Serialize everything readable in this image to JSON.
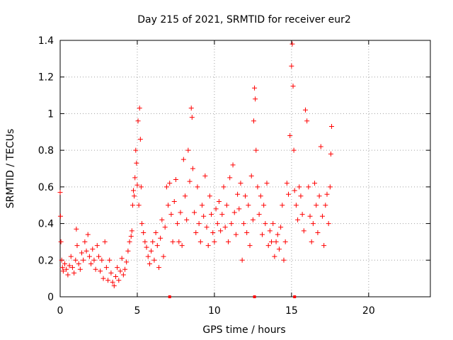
{
  "chart_data": {
    "type": "scatter",
    "title": "Day 215 of 2021, SRMTID for receiver eur2",
    "xlabel": "GPS time / hours",
    "ylabel": "SRMTID / TECUs",
    "xlim": [
      0,
      24
    ],
    "ylim": [
      0,
      1.4
    ],
    "xticks": [
      0,
      5,
      10,
      15,
      20
    ],
    "xtick_labels": [
      "0",
      "5",
      "10",
      "15",
      "20"
    ],
    "yticks": [
      0,
      0.2,
      0.4,
      0.6,
      0.8,
      1.0,
      1.2,
      1.4
    ],
    "ytick_labels": [
      "0",
      "0.2",
      "0.4",
      "0.6",
      "0.8",
      "1",
      "1.2",
      "1.4"
    ],
    "grid": true,
    "marker": "+",
    "color": "#ff0000",
    "series": [
      {
        "name": "SRMTID",
        "points": [
          [
            0.0,
            0.57
          ],
          [
            0.02,
            0.44
          ],
          [
            0.05,
            0.3
          ],
          [
            0.1,
            0.2
          ],
          [
            0.15,
            0.16
          ],
          [
            0.2,
            0.14
          ],
          [
            0.3,
            0.18
          ],
          [
            0.4,
            0.15
          ],
          [
            0.5,
            0.12
          ],
          [
            0.6,
            0.17
          ],
          [
            0.7,
            0.22
          ],
          [
            0.8,
            0.16
          ],
          [
            0.9,
            0.13
          ],
          [
            1.0,
            0.2
          ],
          [
            1.05,
            0.37
          ],
          [
            1.1,
            0.28
          ],
          [
            1.2,
            0.18
          ],
          [
            1.3,
            0.15
          ],
          [
            1.4,
            0.24
          ],
          [
            1.5,
            0.2
          ],
          [
            1.6,
            0.3
          ],
          [
            1.7,
            0.25
          ],
          [
            1.8,
            0.34
          ],
          [
            1.9,
            0.22
          ],
          [
            2.0,
            0.18
          ],
          [
            2.1,
            0.26
          ],
          [
            2.2,
            0.2
          ],
          [
            2.3,
            0.15
          ],
          [
            2.4,
            0.28
          ],
          [
            2.5,
            0.22
          ],
          [
            2.6,
            0.14
          ],
          [
            2.7,
            0.2
          ],
          [
            2.8,
            0.1
          ],
          [
            2.9,
            0.3
          ],
          [
            3.0,
            0.16
          ],
          [
            3.1,
            0.09
          ],
          [
            3.2,
            0.2
          ],
          [
            3.3,
            0.13
          ],
          [
            3.4,
            0.08
          ],
          [
            3.5,
            0.06
          ],
          [
            3.6,
            0.11
          ],
          [
            3.7,
            0.16
          ],
          [
            3.8,
            0.09
          ],
          [
            3.9,
            0.14
          ],
          [
            4.0,
            0.21
          ],
          [
            4.1,
            0.12
          ],
          [
            4.2,
            0.15
          ],
          [
            4.3,
            0.19
          ],
          [
            4.4,
            0.25
          ],
          [
            4.5,
            0.3
          ],
          [
            4.6,
            0.33
          ],
          [
            4.65,
            0.36
          ],
          [
            4.7,
            0.5
          ],
          [
            4.75,
            0.58
          ],
          [
            4.8,
            0.55
          ],
          [
            4.85,
            0.65
          ],
          [
            4.9,
            0.8
          ],
          [
            4.95,
            0.73
          ],
          [
            5.0,
            0.61
          ],
          [
            5.05,
            0.96
          ],
          [
            5.1,
            0.5
          ],
          [
            5.15,
            1.03
          ],
          [
            5.2,
            0.86
          ],
          [
            5.25,
            0.6
          ],
          [
            5.3,
            0.4
          ],
          [
            5.4,
            0.35
          ],
          [
            5.5,
            0.3
          ],
          [
            5.6,
            0.27
          ],
          [
            5.7,
            0.22
          ],
          [
            5.8,
            0.18
          ],
          [
            5.9,
            0.25
          ],
          [
            6.0,
            0.3
          ],
          [
            6.1,
            0.2
          ],
          [
            6.2,
            0.35
          ],
          [
            6.3,
            0.28
          ],
          [
            6.4,
            0.16
          ],
          [
            6.5,
            0.32
          ],
          [
            6.6,
            0.42
          ],
          [
            6.7,
            0.22
          ],
          [
            6.8,
            0.38
          ],
          [
            6.9,
            0.6
          ],
          [
            7.0,
            0.5
          ],
          [
            7.1,
            0.62
          ],
          [
            7.2,
            0.45
          ],
          [
            7.3,
            0.3
          ],
          [
            7.4,
            0.52
          ],
          [
            7.5,
            0.64
          ],
          [
            7.6,
            0.4
          ],
          [
            7.7,
            0.3
          ],
          [
            7.8,
            0.46
          ],
          [
            7.9,
            0.28
          ],
          [
            8.0,
            0.75
          ],
          [
            8.1,
            0.55
          ],
          [
            8.2,
            0.42
          ],
          [
            8.3,
            0.8
          ],
          [
            8.4,
            0.63
          ],
          [
            8.5,
            1.03
          ],
          [
            8.55,
            0.98
          ],
          [
            8.6,
            0.7
          ],
          [
            8.7,
            0.46
          ],
          [
            8.8,
            0.35
          ],
          [
            8.9,
            0.6
          ],
          [
            9.0,
            0.4
          ],
          [
            9.1,
            0.3
          ],
          [
            9.2,
            0.5
          ],
          [
            9.3,
            0.44
          ],
          [
            9.4,
            0.66
          ],
          [
            9.5,
            0.38
          ],
          [
            9.6,
            0.28
          ],
          [
            9.7,
            0.55
          ],
          [
            9.8,
            0.45
          ],
          [
            9.9,
            0.35
          ],
          [
            10.0,
            0.3
          ],
          [
            10.1,
            0.48
          ],
          [
            10.2,
            0.4
          ],
          [
            10.3,
            0.52
          ],
          [
            10.4,
            0.36
          ],
          [
            10.5,
            0.45
          ],
          [
            10.6,
            0.6
          ],
          [
            10.7,
            0.38
          ],
          [
            10.8,
            0.5
          ],
          [
            10.9,
            0.3
          ],
          [
            11.0,
            0.65
          ],
          [
            11.1,
            0.4
          ],
          [
            11.2,
            0.72
          ],
          [
            11.3,
            0.46
          ],
          [
            11.4,
            0.34
          ],
          [
            11.5,
            0.56
          ],
          [
            11.6,
            0.48
          ],
          [
            11.7,
            0.62
          ],
          [
            11.8,
            0.2
          ],
          [
            11.9,
            0.4
          ],
          [
            12.0,
            0.55
          ],
          [
            12.1,
            0.35
          ],
          [
            12.2,
            0.5
          ],
          [
            12.3,
            0.28
          ],
          [
            12.4,
            0.66
          ],
          [
            12.5,
            0.42
          ],
          [
            12.55,
            0.96
          ],
          [
            12.6,
            1.14
          ],
          [
            12.65,
            1.08
          ],
          [
            12.7,
            0.8
          ],
          [
            12.8,
            0.6
          ],
          [
            12.9,
            0.45
          ],
          [
            13.0,
            0.55
          ],
          [
            13.1,
            0.34
          ],
          [
            13.2,
            0.5
          ],
          [
            13.3,
            0.4
          ],
          [
            13.4,
            0.62
          ],
          [
            13.5,
            0.28
          ],
          [
            13.6,
            0.36
          ],
          [
            13.7,
            0.3
          ],
          [
            13.8,
            0.4
          ],
          [
            13.9,
            0.22
          ],
          [
            14.0,
            0.3
          ],
          [
            14.1,
            0.34
          ],
          [
            14.2,
            0.26
          ],
          [
            14.3,
            0.38
          ],
          [
            14.4,
            0.5
          ],
          [
            14.5,
            0.2
          ],
          [
            14.6,
            0.3
          ],
          [
            14.7,
            0.62
          ],
          [
            14.8,
            0.56
          ],
          [
            14.9,
            0.88
          ],
          [
            15.0,
            1.26
          ],
          [
            15.05,
            1.38
          ],
          [
            15.1,
            1.15
          ],
          [
            15.15,
            0.8
          ],
          [
            15.2,
            0.58
          ],
          [
            15.3,
            0.5
          ],
          [
            15.4,
            0.42
          ],
          [
            15.5,
            0.6
          ],
          [
            15.6,
            0.55
          ],
          [
            15.7,
            0.45
          ],
          [
            15.8,
            0.36
          ],
          [
            15.9,
            1.02
          ],
          [
            16.0,
            0.96
          ],
          [
            16.1,
            0.6
          ],
          [
            16.2,
            0.44
          ],
          [
            16.3,
            0.3
          ],
          [
            16.4,
            0.4
          ],
          [
            16.5,
            0.62
          ],
          [
            16.6,
            0.5
          ],
          [
            16.7,
            0.35
          ],
          [
            16.8,
            0.55
          ],
          [
            16.9,
            0.82
          ],
          [
            17.0,
            0.44
          ],
          [
            17.1,
            0.28
          ],
          [
            17.2,
            0.5
          ],
          [
            17.3,
            0.56
          ],
          [
            17.4,
            0.4
          ],
          [
            17.5,
            0.6
          ],
          [
            17.55,
            0.78
          ],
          [
            17.6,
            0.93
          ]
        ]
      }
    ],
    "baseline_markers": [
      7.1,
      12.6,
      15.2
    ]
  }
}
